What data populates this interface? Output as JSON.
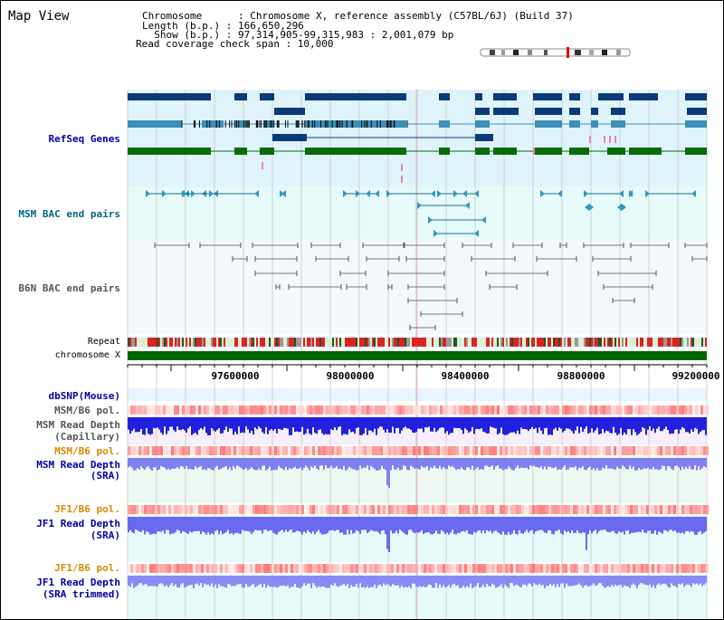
{
  "title": "Map View",
  "info": {
    "line1": "Chromosome      : Chromosome X, reference assembly (C57BL/6J) (Build 37)",
    "line2": "Length (b.p.) : 166,650,296",
    "line3": "  Show (b.p.) : 97,314,905-99,315,983 : 2,001,079 bp",
    "line4": "Read coverage check span : 10,000"
  },
  "tracks": {
    "refseq": "RefSeq Genes",
    "msm_bac": "MSM BAC end pairs",
    "b6n_bac": "B6N BAC end pairs",
    "repeat": "Repeat",
    "chromosome": "chromosome X",
    "dbsnp": "dbSNP(Mouse)",
    "msm_b6_pol_1": "MSM/B6 pol.",
    "msm_depth_cap_1": "MSM Read Depth",
    "msm_depth_cap_2": "(Capillary)",
    "msm_b6_pol_2": "MSM/B6 pol.",
    "msm_depth_sra_1": "MSM Read Depth",
    "msm_depth_sra_2": "(SRA)",
    "jf1_b6_pol_1": "JF1/B6 pol.",
    "jf1_depth_sra_1": "JF1 Read Depth",
    "jf1_depth_sra_2": "(SRA)",
    "jf1_b6_pol_2": "JF1/B6 pol.",
    "jf1_depth_trim_1": "JF1 Read Depth",
    "jf1_depth_trim_2": "(SRA trimmed)"
  },
  "axis": {
    "ticks": [
      "97600000",
      "98000000",
      "98400000",
      "98800000",
      "99200000"
    ]
  },
  "colors": {
    "refseq_dark": "#0b3a78",
    "refseq_mid": "#3d8fb8",
    "refseq_green": "#0a6b0a",
    "refseq_bg": "#dff3fa",
    "msm_bg": "#e6fafa",
    "b6n_bg": "#f3f8fc",
    "label_blue": "#0000aa",
    "label_teal": "#006688",
    "label_orange": "#dd8800",
    "chromosome_green": "#006600"
  }
}
